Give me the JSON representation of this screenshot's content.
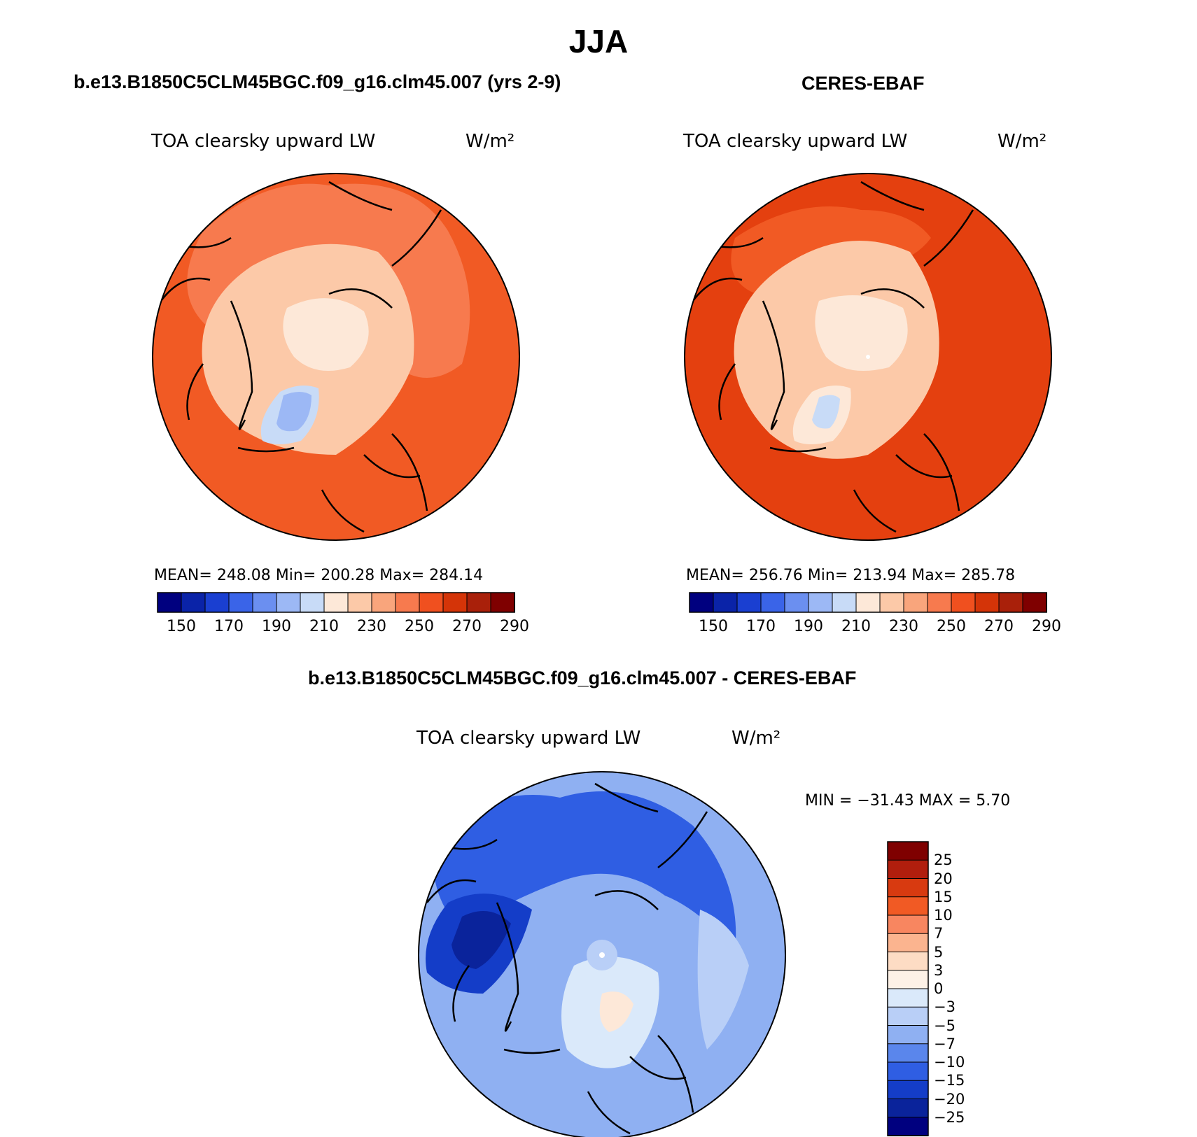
{
  "page_title": "JJA",
  "panels": [
    {
      "title": "b.e13.B1850C5CLM45BGC.f09_g16.clm45.007 (yrs 2-9)",
      "variable": "TOA clearsky upward LW",
      "units": "W/m²",
      "stats": "MEAN= 248.08   Min= 200.28   Max= 284.14"
    },
    {
      "title": "CERES-EBAF",
      "variable": "TOA clearsky upward LW",
      "units": "W/m²",
      "stats": "MEAN= 256.76   Min= 213.94   Max= 285.78"
    },
    {
      "title": "b.e13.B1850C5CLM45BGC.f09_g16.clm45.007 - CERES-EBAF",
      "variable": "TOA clearsky upward LW",
      "units": "W/m²",
      "stats": "MIN = −31.43 MAX =    5.70"
    }
  ],
  "abs_colorbar": {
    "ticks": [
      "150",
      "170",
      "190",
      "210",
      "230",
      "250",
      "270",
      "290"
    ],
    "colors": [
      "#00007f",
      "#0a23a8",
      "#1a3fd1",
      "#3a64e8",
      "#6b8ff0",
      "#9cb8f5",
      "#c8dbf7",
      "#fde8d8",
      "#fcc9a8",
      "#f9a57c",
      "#f77a4e",
      "#f0501f",
      "#d43408",
      "#a9200a",
      "#7f0000"
    ]
  },
  "diff_colorbar": {
    "ticks": [
      "25",
      "20",
      "15",
      "10",
      "7",
      "5",
      "3",
      "0",
      "−3",
      "−5",
      "−7",
      "−10",
      "−15",
      "−20",
      "−25"
    ],
    "colors": [
      "#7f0000",
      "#b11e0d",
      "#d83a10",
      "#f15a24",
      "#f88660",
      "#fbb48f",
      "#fddcc4",
      "#fdf1e6",
      "#dae9fa",
      "#b9cff7",
      "#8fb0f2",
      "#5a86ec",
      "#2f5ee3",
      "#143dc8",
      "#0a239b",
      "#00007f"
    ]
  },
  "map_fill_colors": {
    "model": {
      "ocean": "#f15a24",
      "mid": "#f77a4e",
      "high": "#fcc9a8",
      "pole": "#fde8d8",
      "greenland": "#9cb8f5"
    },
    "obs": {
      "ocean": "#e4400f",
      "mid": "#f77a4e",
      "high": "#fcc9a8",
      "pole": "#fde8d8",
      "greenland": "#c8dbf7"
    },
    "diff": {
      "base": "#5a86ec",
      "mid": "#2f5ee3",
      "dark": "#0a239b",
      "light": "#b9cff7",
      "pale": "#dae9fa",
      "warm": "#fde8d8"
    }
  }
}
